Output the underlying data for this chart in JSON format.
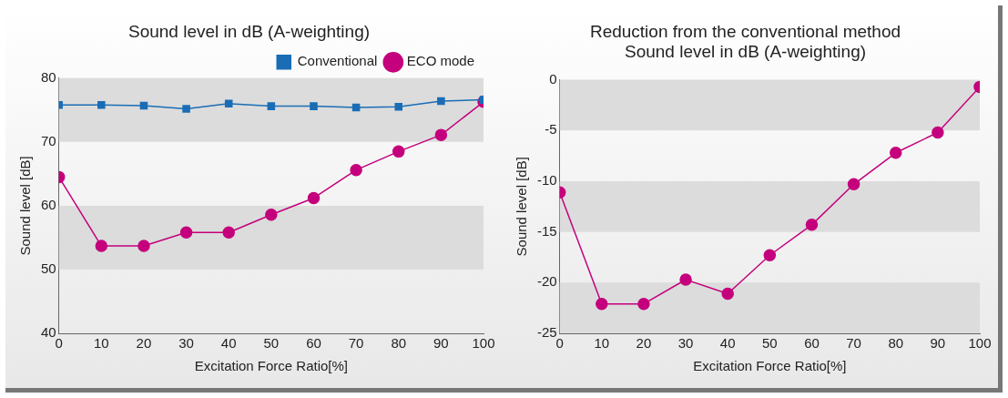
{
  "chart_data": [
    {
      "type": "line",
      "title": "Sound level in dB (A-weighting)",
      "xlabel": "Excitation Force Ratio[%]",
      "ylabel": "Sound level [dB]",
      "x": [
        0,
        10,
        20,
        30,
        40,
        50,
        60,
        70,
        80,
        90,
        100
      ],
      "series": [
        {
          "name": "Conventional",
          "color": "#1a6db5",
          "marker": "square",
          "values": [
            75.8,
            75.8,
            75.7,
            75.2,
            76,
            75.6,
            75.6,
            75.4,
            75.5,
            76.4,
            76.6
          ]
        },
        {
          "name": "ECO mode",
          "color": "#c4007c",
          "marker": "circle",
          "values": [
            64.5,
            53.7,
            53.7,
            55.8,
            55.8,
            58.6,
            61.2,
            65.6,
            68.5,
            71.1,
            76.3
          ]
        }
      ],
      "xlim": [
        0,
        100
      ],
      "xticks": [
        0,
        10,
        20,
        30,
        40,
        50,
        60,
        70,
        80,
        90,
        100
      ],
      "ylim": [
        40,
        80
      ],
      "yticks": [
        40,
        50,
        60,
        70,
        80
      ],
      "bands": [
        {
          "axis": "y",
          "from": 70,
          "to": 80,
          "color": "#dcdcdc"
        },
        {
          "axis": "y",
          "from": 50,
          "to": 60,
          "color": "#dcdcdc"
        }
      ],
      "grid": false,
      "legend": "top right"
    },
    {
      "type": "line",
      "title": "Reduction from the conventional method\nSound level in dB (A-weighting)",
      "xlabel": "Excitation Force Ratio[%]",
      "ylabel": "Sound level [dB]",
      "x": [
        0,
        10,
        20,
        30,
        40,
        50,
        60,
        70,
        80,
        90,
        100
      ],
      "series": [
        {
          "color": "#c4007c",
          "marker": "circle",
          "values": [
            -11.1,
            -22.1,
            -22.1,
            -19.7,
            -21.1,
            -17.3,
            -14.3,
            -10.3,
            -7.2,
            -5.2,
            -0.7
          ]
        }
      ],
      "xlim": [
        0,
        100
      ],
      "xticks": [
        0,
        10,
        20,
        30,
        40,
        50,
        60,
        70,
        80,
        90,
        100
      ],
      "ylim": [
        -25,
        0
      ],
      "yticks": [
        -25,
        -20,
        -15,
        -10,
        -5,
        0
      ],
      "bands": [
        {
          "axis": "y",
          "from": 0,
          "to": -5,
          "color": "#dcdcdc"
        },
        {
          "axis": "y",
          "from": -10,
          "to": -15,
          "color": "#dcdcdc"
        },
        {
          "axis": "y",
          "from": -20,
          "to": -25,
          "color": "#dcdcdc"
        }
      ],
      "grid": false,
      "legend": false
    }
  ]
}
